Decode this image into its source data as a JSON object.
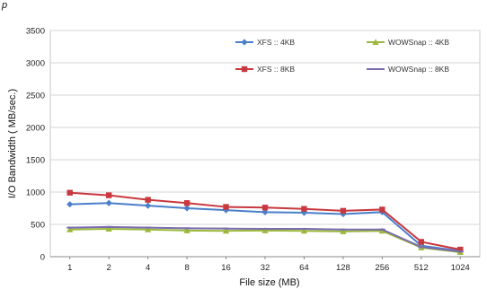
{
  "corner_text": "p",
  "chart_data": {
    "type": "line",
    "xlabel": "File size (MB)",
    "ylabel": "I/O Bandwidth ( MB/sec.)",
    "categories": [
      "1",
      "2",
      "4",
      "8",
      "16",
      "32",
      "64",
      "128",
      "256",
      "512",
      "1024"
    ],
    "ylim": [
      0,
      3500
    ],
    "yticks": [
      0,
      500,
      1000,
      1500,
      2000,
      2500,
      3000,
      3500
    ],
    "grid": true,
    "legend_position": "top-right",
    "series": [
      {
        "name": "XFS :: 4KB",
        "color": "#4a7fc9",
        "marker": "diamond",
        "values": [
          810,
          830,
          790,
          750,
          720,
          690,
          680,
          660,
          690,
          170,
          90
        ]
      },
      {
        "name": "WOWSnap :: 4KB",
        "color": "#9ab83a",
        "marker": "triangle",
        "values": [
          420,
          430,
          420,
          405,
          400,
          405,
          400,
          390,
          400,
          140,
          70
        ]
      },
      {
        "name": "XFS :: 8KB",
        "color": "#c8383e",
        "marker": "square",
        "values": [
          990,
          950,
          880,
          830,
          770,
          760,
          740,
          710,
          730,
          230,
          110
        ]
      },
      {
        "name": "WOWSnap :: 8KB",
        "color": "#7a6cae",
        "marker": "line",
        "values": [
          450,
          460,
          450,
          440,
          435,
          430,
          430,
          420,
          420,
          150,
          80
        ]
      }
    ]
  }
}
